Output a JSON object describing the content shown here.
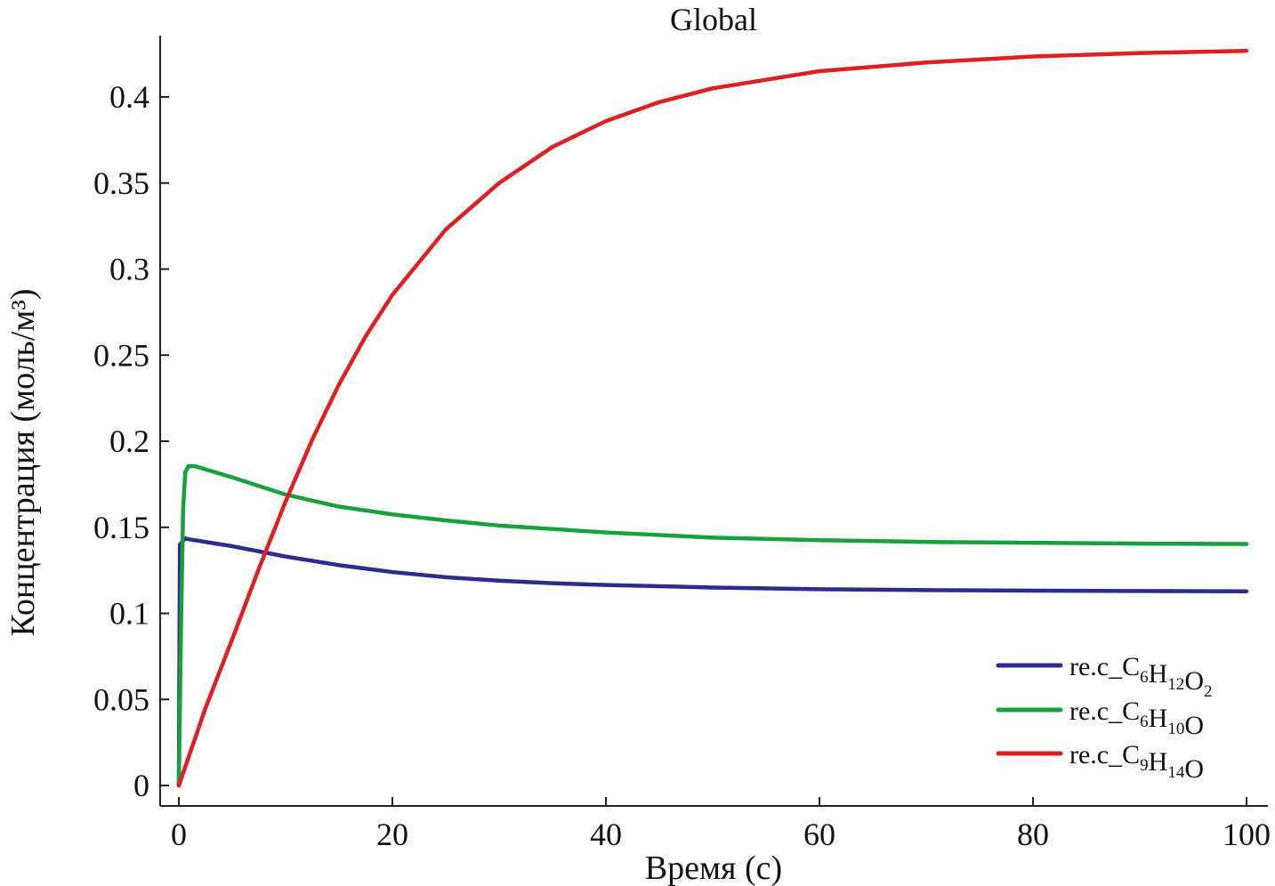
{
  "chart_data": {
    "type": "line",
    "title": "Global",
    "xlabel": "Время (с)",
    "ylabel": "Концентрация (моль/м³)",
    "xlim": [
      -1.5,
      102
    ],
    "ylim": [
      -0.011,
      0.44
    ],
    "xticks": [
      {
        "value": 0,
        "label": "0"
      },
      {
        "value": 20,
        "label": "20"
      },
      {
        "value": 40,
        "label": "40"
      },
      {
        "value": 60,
        "label": "60"
      },
      {
        "value": 80,
        "label": "80"
      },
      {
        "value": 100,
        "label": "100"
      }
    ],
    "yticks": [
      {
        "value": 0,
        "label": "0"
      },
      {
        "value": 0.05,
        "label": "0.05"
      },
      {
        "value": 0.1,
        "label": "0.1"
      },
      {
        "value": 0.15,
        "label": "0.15"
      },
      {
        "value": 0.2,
        "label": "0.2"
      },
      {
        "value": 0.25,
        "label": "0.25"
      },
      {
        "value": 0.3,
        "label": "0.3"
      },
      {
        "value": 0.35,
        "label": "0.35"
      },
      {
        "value": 0.4,
        "label": "0.4"
      }
    ],
    "grid": false,
    "legend_position": "bottom-right",
    "series": [
      {
        "name": "re.c_C6H12O2",
        "legend": {
          "prefix": "re.c_",
          "parts": [
            [
              "C",
              ""
            ],
            [
              "H",
              "12"
            ],
            [
              "O",
              "2"
            ]
          ],
          "parts_sub": [
            "6",
            "12",
            "2"
          ]
        },
        "color": "#2b2c8f",
        "points": [
          [
            0,
            0.0
          ],
          [
            0.1,
            0.14
          ],
          [
            0.6,
            0.1435
          ],
          [
            1,
            0.143
          ],
          [
            5,
            0.139
          ],
          [
            10,
            0.133
          ],
          [
            15,
            0.128
          ],
          [
            20,
            0.124
          ],
          [
            25,
            0.121
          ],
          [
            30,
            0.119
          ],
          [
            35,
            0.1175
          ],
          [
            40,
            0.1165
          ],
          [
            50,
            0.115
          ],
          [
            60,
            0.114
          ],
          [
            70,
            0.1135
          ],
          [
            80,
            0.1132
          ],
          [
            90,
            0.113
          ],
          [
            100,
            0.1128
          ]
        ]
      },
      {
        "name": "re.c_C6H10O",
        "legend": {
          "prefix": "re.c_"
        },
        "color": "#16a23a",
        "points": [
          [
            0,
            0.0
          ],
          [
            0.2,
            0.09
          ],
          [
            0.4,
            0.16
          ],
          [
            0.6,
            0.182
          ],
          [
            0.9,
            0.1855
          ],
          [
            1.5,
            0.1855
          ],
          [
            5,
            0.179
          ],
          [
            10,
            0.169
          ],
          [
            15,
            0.162
          ],
          [
            20,
            0.1575
          ],
          [
            25,
            0.154
          ],
          [
            30,
            0.151
          ],
          [
            35,
            0.149
          ],
          [
            40,
            0.147
          ],
          [
            50,
            0.144
          ],
          [
            60,
            0.1425
          ],
          [
            70,
            0.1415
          ],
          [
            80,
            0.141
          ],
          [
            90,
            0.1405
          ],
          [
            100,
            0.1403
          ]
        ]
      },
      {
        "name": "re.c_C9H14O",
        "legend": {
          "prefix": "re.c_"
        },
        "color": "#e02020",
        "points": [
          [
            0,
            0.0
          ],
          [
            2.5,
            0.045
          ],
          [
            5,
            0.085
          ],
          [
            7.5,
            0.126
          ],
          [
            10,
            0.165
          ],
          [
            12.5,
            0.201
          ],
          [
            15,
            0.233
          ],
          [
            17.5,
            0.261
          ],
          [
            20,
            0.285
          ],
          [
            25,
            0.323
          ],
          [
            30,
            0.35
          ],
          [
            35,
            0.371
          ],
          [
            40,
            0.386
          ],
          [
            45,
            0.397
          ],
          [
            50,
            0.405
          ],
          [
            60,
            0.415
          ],
          [
            70,
            0.42
          ],
          [
            80,
            0.4235
          ],
          [
            90,
            0.4255
          ],
          [
            100,
            0.4268
          ]
        ]
      }
    ]
  },
  "legend": {
    "items": [
      {
        "prefix": "re.c_",
        "pieces": [
          {
            "t": "C",
            "s": "6"
          },
          {
            "t": "H",
            "s": "12"
          },
          {
            "t": "O",
            "s": "2"
          }
        ]
      },
      {
        "prefix": "re.c_",
        "pieces": [
          {
            "t": "C",
            "s": "6"
          },
          {
            "t": "H",
            "s": "10"
          },
          {
            "t": "O",
            "s": ""
          }
        ]
      },
      {
        "prefix": "re.c_",
        "pieces": [
          {
            "t": "C",
            "s": "9"
          },
          {
            "t": "H",
            "s": "14"
          },
          {
            "t": "O",
            "s": ""
          }
        ]
      }
    ]
  }
}
